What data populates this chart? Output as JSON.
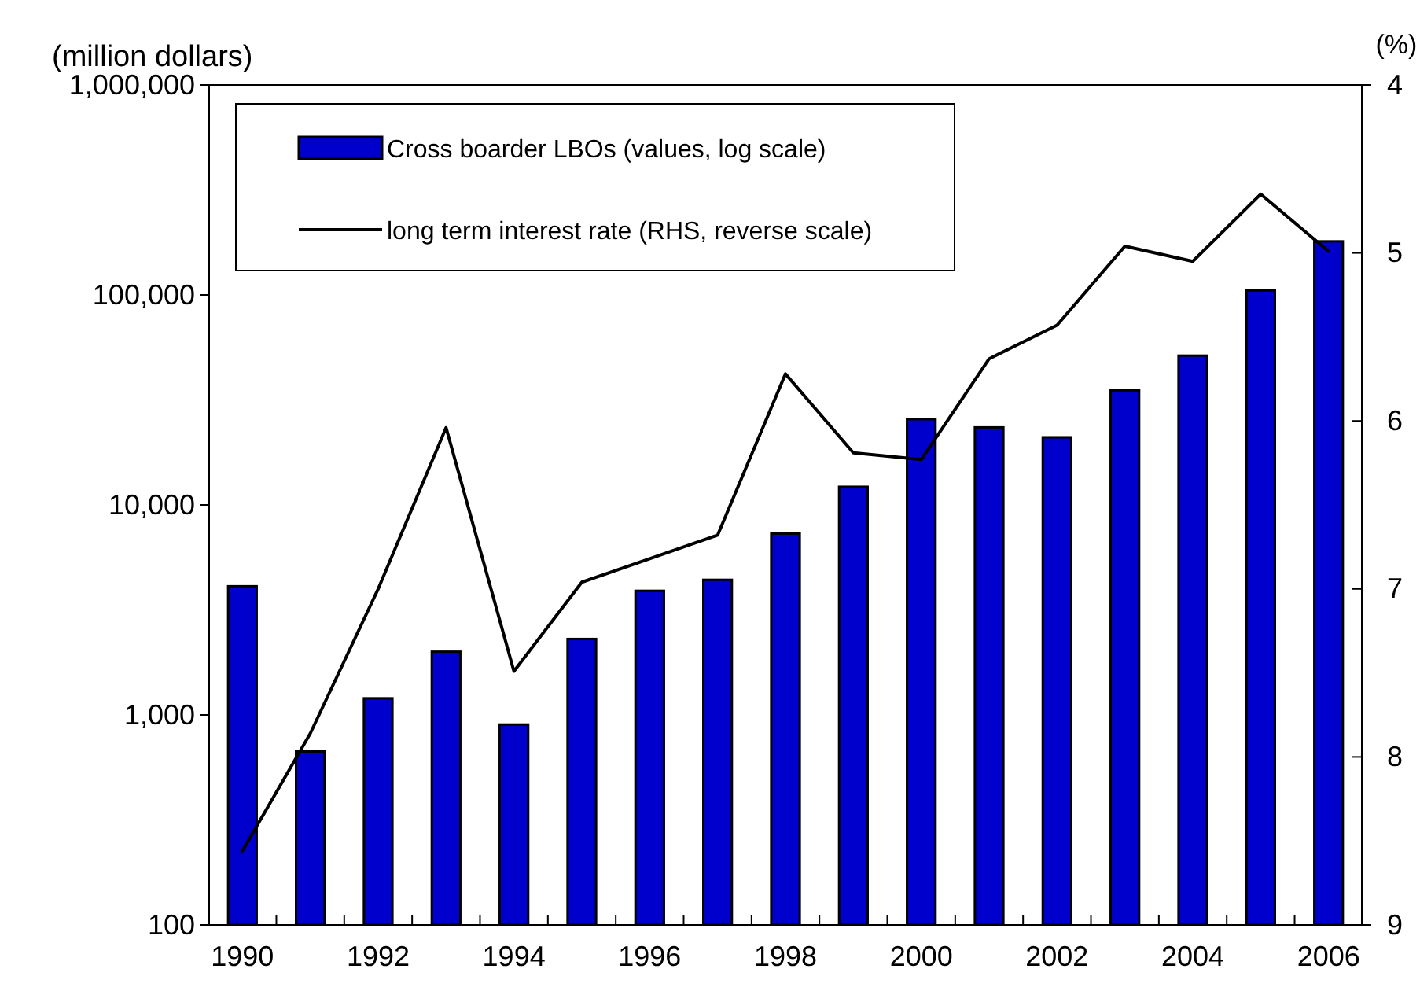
{
  "chart_data": {
    "type": "bar",
    "ylabel": "(million dollars)",
    "y2label": "(%)",
    "categories": [
      "1990",
      null,
      "1992",
      null,
      "1994",
      null,
      "1996",
      null,
      "1998",
      null,
      "2000",
      null,
      "2002",
      null,
      "2004",
      null,
      "2006"
    ],
    "series": [
      {
        "name": "Cross boarder LBOs (values, log scale)",
        "color": "#0000cc",
        "values": [
          4100,
          670,
          1200,
          2000,
          900,
          2300,
          3900,
          4400,
          7300,
          12200,
          25600,
          23400,
          21000,
          35100,
          51400,
          105000,
          180000
        ]
      },
      {
        "name": "long term interest rate (RHS, reverse scale)",
        "type": "line",
        "axis": "y2",
        "color": "#000000",
        "values": [
          8.56,
          7.86,
          7.0,
          6.04,
          7.49,
          6.96,
          6.82,
          6.68,
          5.72,
          6.19,
          6.23,
          5.63,
          5.43,
          4.96,
          5.05,
          4.65,
          4.99
        ]
      }
    ],
    "ylim": [
      100,
      1000000
    ],
    "yticks": [
      100,
      {
        "value": 1000,
        "label": "1,000"
      },
      {
        "value": 10000,
        "label": "10,000"
      },
      {
        "value": 100000,
        "label": "100,000"
      },
      {
        "value": 1000000,
        "label": "1,000,000"
      }
    ],
    "y2lim": [
      9,
      4
    ],
    "y2ticks": [
      4,
      5,
      6,
      7,
      8,
      9
    ],
    "log": "y",
    "legend": "top left",
    "marker": "none",
    "line_style": "solid"
  }
}
